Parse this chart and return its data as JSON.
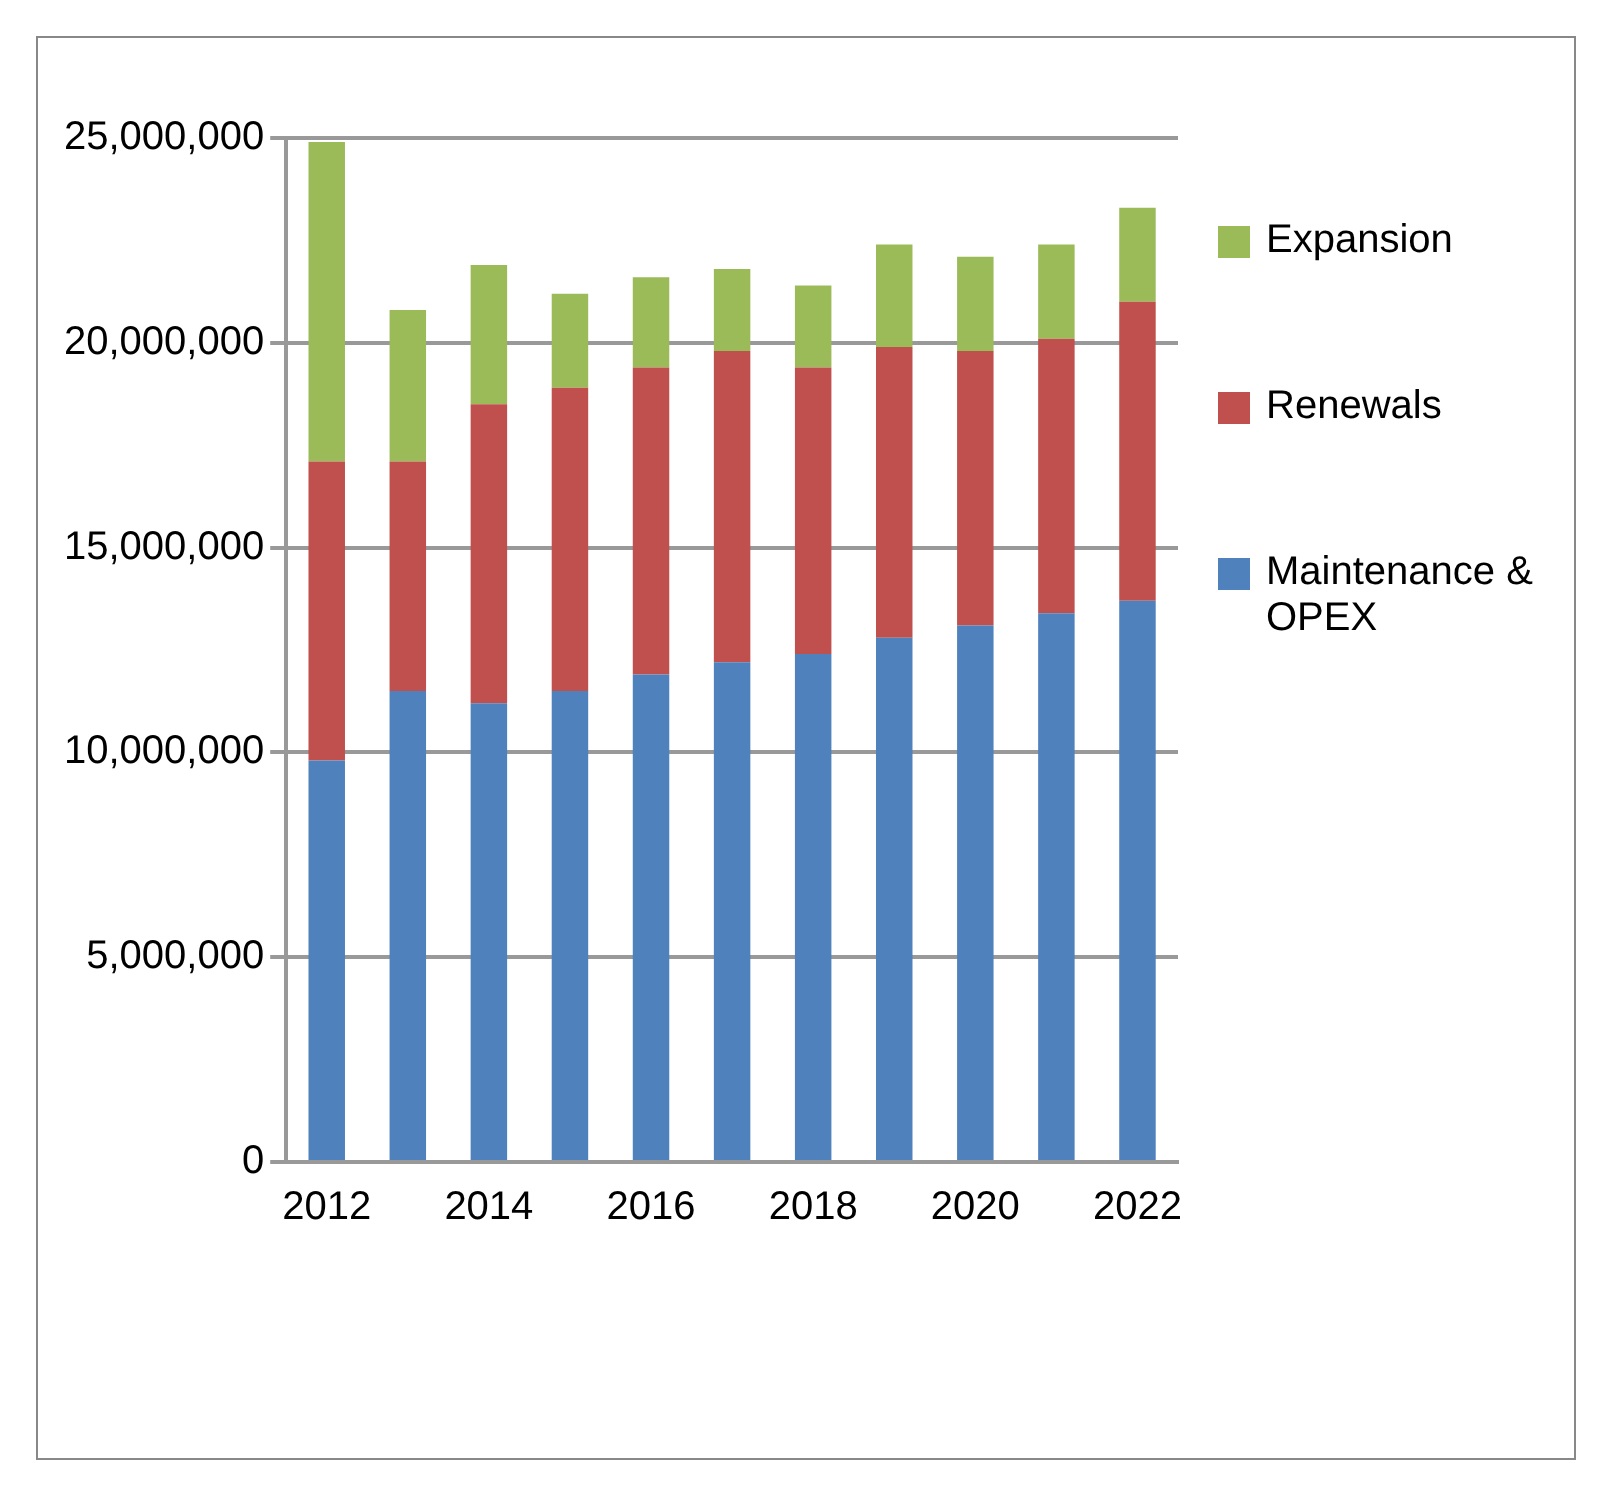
{
  "chart_data": {
    "type": "bar",
    "stacked": true,
    "categories": [
      "2012",
      null,
      "2014",
      null,
      "2016",
      null,
      "2018",
      null,
      "2020",
      null,
      "2022"
    ],
    "series": [
      {
        "name": "Maintenance & OPEX",
        "color": "#4f81bd",
        "values": [
          9800000,
          11500000,
          11200000,
          11500000,
          11900000,
          12200000,
          12400000,
          12800000,
          13100000,
          13400000,
          13700000
        ]
      },
      {
        "name": "Renewals",
        "color": "#c0504d",
        "values": [
          7300000,
          5600000,
          7300000,
          7400000,
          7500000,
          7600000,
          7000000,
          7100000,
          6700000,
          6700000,
          7300000
        ]
      },
      {
        "name": "Expansion",
        "color": "#9bbb59",
        "values": [
          7800000,
          3700000,
          3400000,
          2300000,
          2200000,
          2000000,
          2000000,
          2500000,
          2300000,
          2300000,
          2300000
        ]
      }
    ],
    "ylim": [
      0,
      25000000
    ],
    "yticks": [
      0,
      {
        "value": 5000000,
        "label": "5,000,000"
      },
      {
        "value": 10000000,
        "label": "10,000,000"
      },
      {
        "value": 15000000,
        "label": "15,000,000"
      },
      {
        "value": 20000000,
        "label": "20,000,000"
      },
      {
        "value": 25000000,
        "label": "25,000,000"
      }
    ],
    "grid": "y",
    "legend": "right"
  }
}
